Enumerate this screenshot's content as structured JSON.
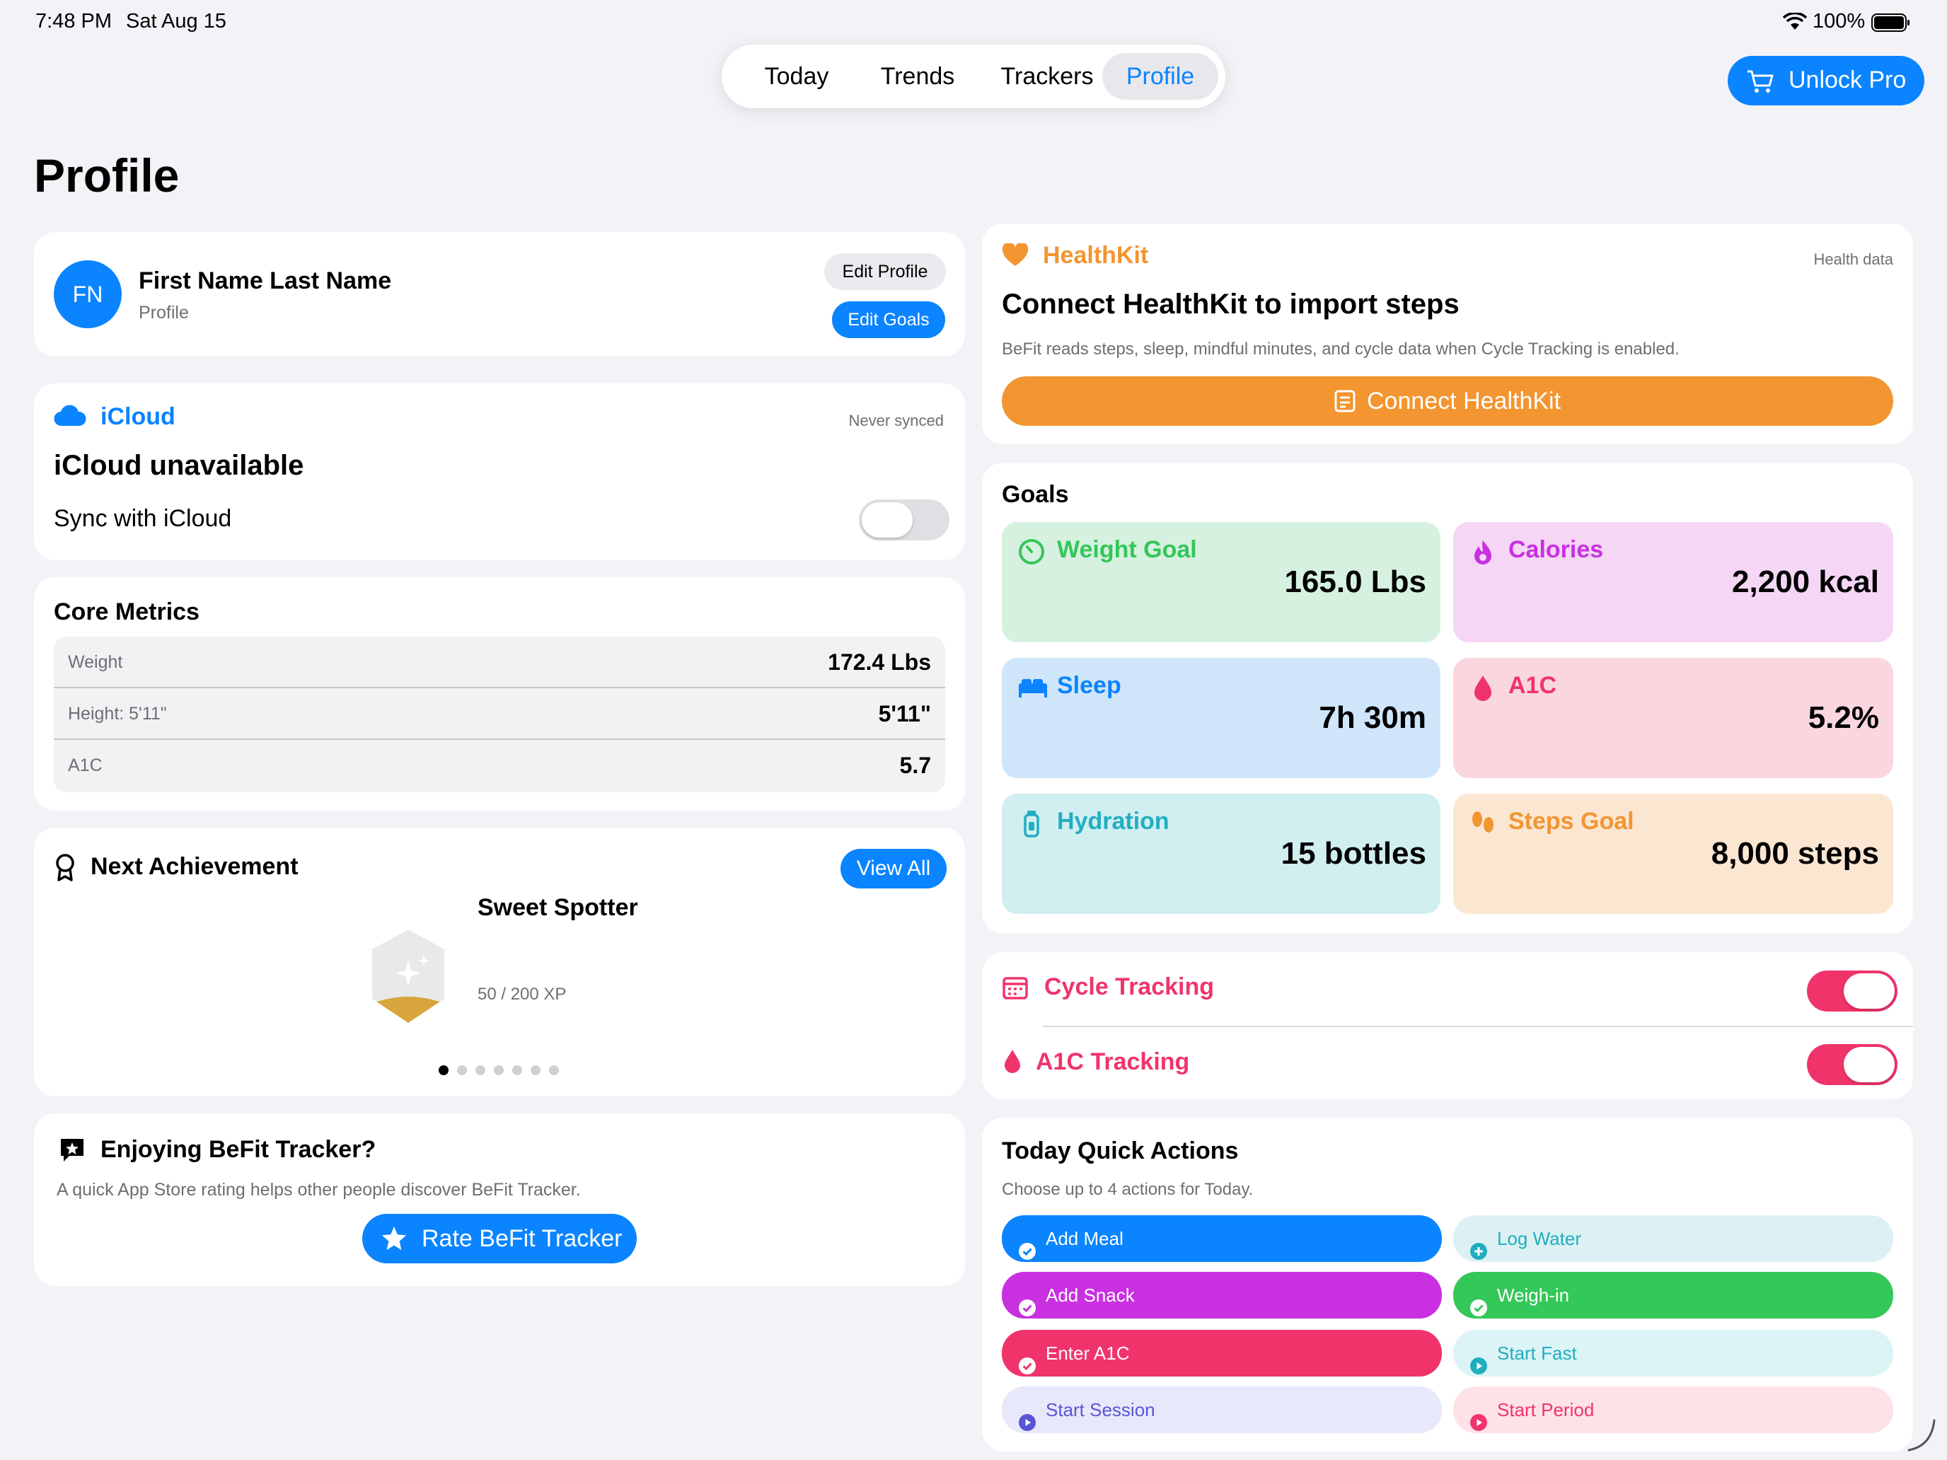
{
  "status_bar": {
    "time": "7:48 PM",
    "date": "Sat Aug 15",
    "battery": "100%"
  },
  "nav": {
    "tabs": [
      "Today",
      "Trends",
      "Trackers",
      "Profile"
    ],
    "active": "Profile"
  },
  "unlock_pro": "Unlock Pro",
  "page_title": "Profile",
  "profile": {
    "initials": "FN",
    "name": "First Name Last Name",
    "subtitle": "Profile",
    "edit_profile": "Edit Profile",
    "edit_goals": "Edit Goals"
  },
  "icloud": {
    "title": "iCloud",
    "status": "Never synced",
    "headline": "iCloud unavailable",
    "sync_label": "Sync with iCloud",
    "sync_on": false
  },
  "core_metrics": {
    "title": "Core Metrics",
    "rows": [
      {
        "label": "Weight",
        "value": "172.4 Lbs"
      },
      {
        "label": "Height: 5'11\"",
        "value": "5'11\""
      },
      {
        "label": "A1C",
        "value": "5.7"
      }
    ]
  },
  "achievement": {
    "title": "Next Achievement",
    "view_all": "View All",
    "name": "Sweet Spotter",
    "xp": "50 / 200 XP",
    "progress": 0.25,
    "page_count": 7,
    "page_index": 0
  },
  "rating": {
    "title": "Enjoying BeFit Tracker?",
    "body": "A quick App Store rating helps other people discover BeFit Tracker.",
    "button": "Rate BeFit Tracker"
  },
  "healthkit": {
    "title": "HealthKit",
    "tag": "Health data",
    "headline": "Connect HealthKit to import steps",
    "body": "BeFit reads steps, sleep, mindful minutes, and cycle data when Cycle Tracking is enabled.",
    "button": "Connect HealthKit"
  },
  "goals": {
    "title": "Goals",
    "items": [
      {
        "label": "Weight Goal",
        "value": "165.0 Lbs"
      },
      {
        "label": "Calories",
        "value": "2,200 kcal"
      },
      {
        "label": "Sleep",
        "value": "7h 30m"
      },
      {
        "label": "A1C",
        "value": "5.2%"
      },
      {
        "label": "Hydration",
        "value": "15 bottles"
      },
      {
        "label": "Steps Goal",
        "value": "8,000 steps"
      }
    ]
  },
  "trackers": {
    "cycle": {
      "label": "Cycle Tracking",
      "on": true
    },
    "a1c": {
      "label": "A1C Tracking",
      "on": true
    }
  },
  "quick_actions": {
    "title": "Today Quick Actions",
    "subtitle": "Choose up to 4 actions for Today.",
    "items": [
      {
        "label": "Add Meal",
        "selected": true
      },
      {
        "label": "Log Water",
        "selected": false
      },
      {
        "label": "Add Snack",
        "selected": true
      },
      {
        "label": "Weigh-in",
        "selected": true
      },
      {
        "label": "Enter A1C",
        "selected": true
      },
      {
        "label": "Start Fast",
        "selected": false
      },
      {
        "label": "Start Session",
        "selected": false
      },
      {
        "label": "Start Period",
        "selected": false
      }
    ]
  },
  "colors": {
    "accent": "#0a84ff",
    "healthkit_orange": "#f39530",
    "pink": "#f0346b",
    "purple": "#c830e0",
    "green": "#34c759"
  }
}
